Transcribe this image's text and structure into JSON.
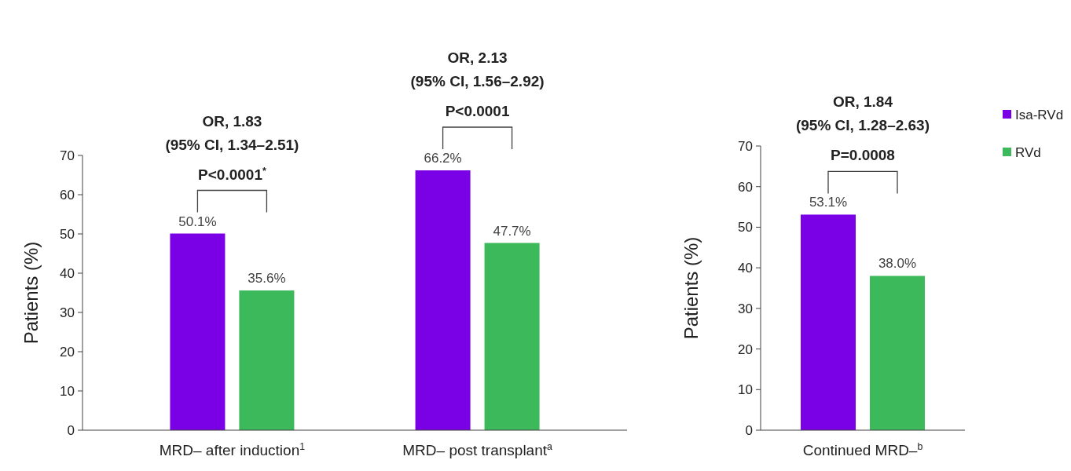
{
  "chart_data": [
    {
      "type": "bar",
      "categories": [
        "MRD– after induction$^{1}$",
        "MRD– post transplant$^{a}$"
      ],
      "ylabel": "Patients (%)",
      "ylim": [
        0,
        70
      ],
      "yticks": [
        0,
        10,
        20,
        30,
        40,
        50,
        60,
        70
      ],
      "legend": false,
      "annotations": [
        "OR, 1.83",
        "(95% CI, 1.34–2.51)",
        "P<0.0001$^{*}$",
        "OR, 2.13",
        "(95% CI, 1.56–2.92)",
        "P<0.0001"
      ],
      "series": [
        {
          "color": "#7a00e6",
          "values": [
            50.1,
            66.2
          ],
          "value_labels": [
            "50.1%",
            "66.2%"
          ]
        },
        {
          "color": "#3cb95a",
          "values": [
            35.6,
            47.7
          ],
          "value_labels": [
            "35.6%",
            "47.7%"
          ]
        }
      ]
    },
    {
      "type": "bar",
      "categories": [
        "Continued MRD–$^{b}$"
      ],
      "ylabel": "Patients (%)",
      "ylim": [
        0,
        70
      ],
      "yticks": [
        0,
        10,
        20,
        30,
        40,
        50,
        60,
        70
      ],
      "legend": "right",
      "annotations": [
        "OR, 1.84",
        "(95% CI, 1.28–2.63)",
        "P=0.0008"
      ],
      "series": [
        {
          "name": "Isa-RVd",
          "color": "#7a00e6",
          "values": [
            53.1
          ],
          "value_labels": [
            "53.1%"
          ]
        },
        {
          "name": "RVd",
          "color": "#3cb95a",
          "values": [
            38.0
          ],
          "value_labels": [
            "38.0%"
          ]
        }
      ]
    }
  ]
}
